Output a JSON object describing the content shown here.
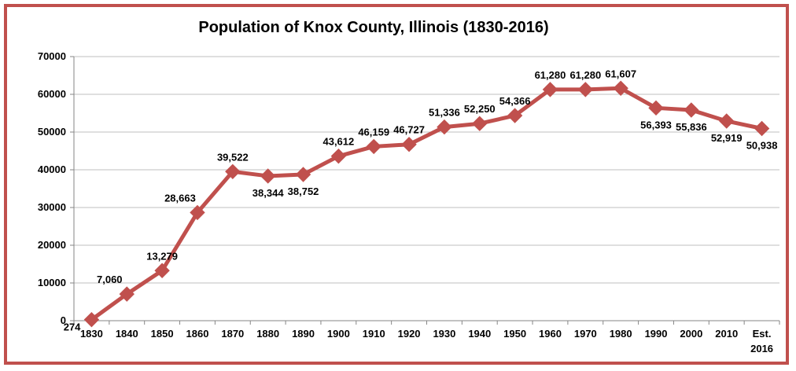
{
  "chart_data": {
    "type": "line",
    "title": "Population of Knox County, Illinois (1830-2016)",
    "xlabel": "",
    "ylabel": "",
    "categories": [
      "1830",
      "1840",
      "1850",
      "1860",
      "1870",
      "1880",
      "1890",
      "1900",
      "1910",
      "1920",
      "1930",
      "1940",
      "1950",
      "1960",
      "1970",
      "1980",
      "1990",
      "2000",
      "2010",
      "Est. 2016"
    ],
    "category_lines": [
      [
        "1830"
      ],
      [
        "1840"
      ],
      [
        "1850"
      ],
      [
        "1860"
      ],
      [
        "1870"
      ],
      [
        "1880"
      ],
      [
        "1890"
      ],
      [
        "1900"
      ],
      [
        "1910"
      ],
      [
        "1920"
      ],
      [
        "1930"
      ],
      [
        "1940"
      ],
      [
        "1950"
      ],
      [
        "1960"
      ],
      [
        "1970"
      ],
      [
        "1980"
      ],
      [
        "1990"
      ],
      [
        "2000"
      ],
      [
        "2010"
      ],
      [
        "Est.",
        "2016"
      ]
    ],
    "values": [
      274,
      7060,
      13279,
      28663,
      39522,
      38344,
      38752,
      43612,
      46159,
      46727,
      51336,
      52250,
      54366,
      61280,
      61280,
      61607,
      56393,
      55836,
      52919,
      50938
    ],
    "data_labels": [
      "274",
      "7,060",
      "13,279",
      "28,663",
      "39,522",
      "38,344",
      "38,752",
      "43,612",
      "46,159",
      "46,727",
      "51,336",
      "52,250",
      "54,366",
      "61,280",
      "61,280",
      "61,607",
      "56,393",
      "55,836",
      "52,919",
      "50,938"
    ],
    "label_positions": [
      "left",
      "above-left",
      "above",
      "above-left",
      "above",
      "below",
      "below",
      "above",
      "above",
      "above",
      "above",
      "above",
      "above",
      "above",
      "above",
      "above",
      "below",
      "below",
      "below",
      "below"
    ],
    "ylim": [
      0,
      70000
    ],
    "yticks": [
      0,
      10000,
      20000,
      30000,
      40000,
      50000,
      60000,
      70000
    ],
    "ytick_labels": [
      "0",
      "10000",
      "20000",
      "30000",
      "40000",
      "50000",
      "60000",
      "70000"
    ],
    "grid": true,
    "legend": "none",
    "colors": {
      "series": "#c0504d",
      "frame": "#c0504d",
      "grid": "#bfbfbf",
      "axis": "#868686"
    }
  }
}
